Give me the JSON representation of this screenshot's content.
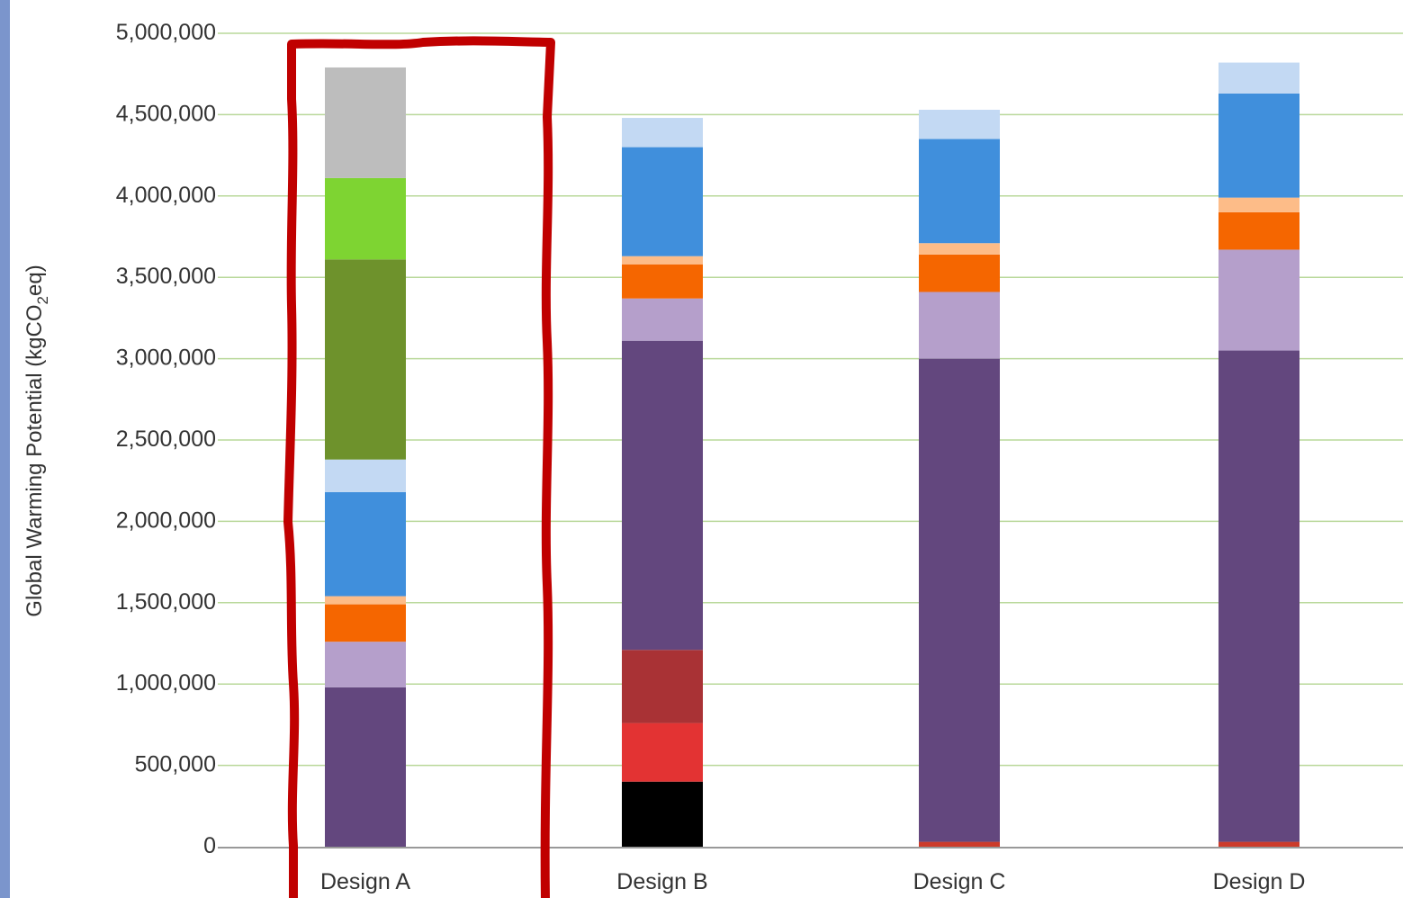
{
  "colors": {
    "left_strip": "#7b95cc",
    "gridline": "#b9d89a",
    "axis_line": "#999999",
    "highlight_box": "#c00000"
  },
  "chart_data": {
    "type": "bar",
    "stacked": true,
    "ylabel": "Global Warming Potential (kgCO2eq)",
    "ylabel_parts": [
      "Global Warming Potential (kgCO",
      "2",
      "eq)"
    ],
    "xlabel": "",
    "ylim": [
      0,
      5000000
    ],
    "yticks": [
      0,
      500000,
      1000000,
      1500000,
      2000000,
      2500000,
      3000000,
      3500000,
      4000000,
      4500000,
      5000000
    ],
    "ytick_labels": [
      "0",
      "500,000",
      "1,000,000",
      "1,500,000",
      "2,000,000",
      "2,500,000",
      "3,000,000",
      "3,500,000",
      "4,000,000",
      "4,500,000",
      "5,000,000"
    ],
    "grid": true,
    "categories": [
      "Design A",
      "Design B",
      "Design C",
      "Design D"
    ],
    "highlighted_category": "Design A",
    "stacks": [
      {
        "category": "Design A",
        "segments": [
          {
            "value": 980000,
            "color": "#63477e"
          },
          {
            "value": 280000,
            "color": "#b59fcb"
          },
          {
            "value": 230000,
            "color": "#f56600"
          },
          {
            "value": 50000,
            "color": "#fdbc88"
          },
          {
            "value": 640000,
            "color": "#408fdc"
          },
          {
            "value": 200000,
            "color": "#c3d9f3"
          },
          {
            "value": 1230000,
            "color": "#6e922c"
          },
          {
            "value": 500000,
            "color": "#7ed432"
          },
          {
            "value": 680000,
            "color": "#bdbdbd"
          }
        ]
      },
      {
        "category": "Design B",
        "segments": [
          {
            "value": 400000,
            "color": "#000000"
          },
          {
            "value": 360000,
            "color": "#e33333"
          },
          {
            "value": 450000,
            "color": "#a93235"
          },
          {
            "value": 1900000,
            "color": "#63477e"
          },
          {
            "value": 260000,
            "color": "#b59fcb"
          },
          {
            "value": 210000,
            "color": "#f56600"
          },
          {
            "value": 50000,
            "color": "#fdbc88"
          },
          {
            "value": 670000,
            "color": "#408fdc"
          },
          {
            "value": 180000,
            "color": "#c3d9f3"
          }
        ]
      },
      {
        "category": "Design C",
        "segments": [
          {
            "value": 30000,
            "color": "#cc3b2a"
          },
          {
            "value": 2970000,
            "color": "#63477e"
          },
          {
            "value": 410000,
            "color": "#b59fcb"
          },
          {
            "value": 230000,
            "color": "#f56600"
          },
          {
            "value": 70000,
            "color": "#fdbc88"
          },
          {
            "value": 640000,
            "color": "#408fdc"
          },
          {
            "value": 180000,
            "color": "#c3d9f3"
          }
        ]
      },
      {
        "category": "Design D",
        "segments": [
          {
            "value": 30000,
            "color": "#cc3b2a"
          },
          {
            "value": 3020000,
            "color": "#63477e"
          },
          {
            "value": 620000,
            "color": "#b59fcb"
          },
          {
            "value": 230000,
            "color": "#f56600"
          },
          {
            "value": 90000,
            "color": "#fdbc88"
          },
          {
            "value": 640000,
            "color": "#408fdc"
          },
          {
            "value": 190000,
            "color": "#c3d9f3"
          }
        ]
      }
    ]
  }
}
